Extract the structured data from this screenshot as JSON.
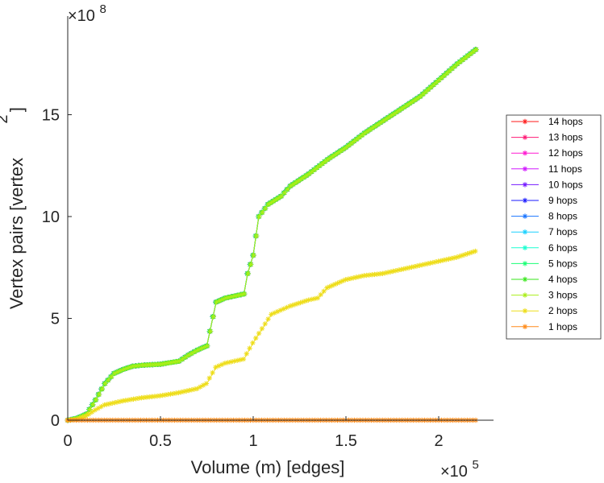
{
  "chart_data": {
    "type": "line",
    "xlabel": "Volume (m) [edges]",
    "ylabel_main": "Vertex pairs [vertex",
    "ylabel_sup": "2",
    "ylabel_close": "]",
    "x_multiplier": {
      "base": "×10",
      "exp": "5"
    },
    "y_multiplier": {
      "base": "×10",
      "exp": "8"
    },
    "xlim": [
      0,
      230000
    ],
    "ylim": [
      0,
      1950000000
    ],
    "xticks": [
      {
        "value": 0,
        "label": "0"
      },
      {
        "value": 50000,
        "label": "0.5"
      },
      {
        "value": 100000,
        "label": "1"
      },
      {
        "value": 150000,
        "label": "1.5"
      },
      {
        "value": 200000,
        "label": "2"
      }
    ],
    "yticks": [
      {
        "value": 0,
        "label": "0"
      },
      {
        "value": 500000000,
        "label": "5"
      },
      {
        "value": 1000000000,
        "label": "10"
      },
      {
        "value": 1500000000,
        "label": "15"
      }
    ],
    "legend_position": "right",
    "series": [
      {
        "name": "14 hops",
        "color": "#ff1a1a",
        "profile": "full"
      },
      {
        "name": "13 hops",
        "color": "#ff1a75",
        "profile": "full"
      },
      {
        "name": "12 hops",
        "color": "#ff1ad1",
        "profile": "full"
      },
      {
        "name": "11 hops",
        "color": "#d11aff",
        "profile": "full"
      },
      {
        "name": "10 hops",
        "color": "#751aff",
        "profile": "full"
      },
      {
        "name": "9 hops",
        "color": "#1a1aff",
        "profile": "full"
      },
      {
        "name": "8 hops",
        "color": "#1a75ff",
        "profile": "full"
      },
      {
        "name": "7 hops",
        "color": "#1ad1ff",
        "profile": "full"
      },
      {
        "name": "6 hops",
        "color": "#1affd1",
        "profile": "full"
      },
      {
        "name": "5 hops",
        "color": "#1aff75",
        "profile": "full"
      },
      {
        "name": "4 hops",
        "color": "#36e61a",
        "profile": "full"
      },
      {
        "name": "3 hops",
        "color": "#aaee1a",
        "profile": "full"
      },
      {
        "name": "2 hops",
        "color": "#eedd1a",
        "profile": "two"
      },
      {
        "name": "1 hops",
        "color": "#ff8c1a",
        "profile": "one"
      }
    ],
    "profiles": {
      "full": {
        "x": [
          0,
          5000,
          10000,
          15000,
          20000,
          25000,
          30000,
          35000,
          40000,
          50000,
          60000,
          65000,
          70000,
          75000,
          80000,
          85000,
          90000,
          95000,
          97000,
          100000,
          103000,
          108000,
          115000,
          120000,
          130000,
          140000,
          150000,
          160000,
          170000,
          180000,
          190000,
          200000,
          210000,
          220000
        ],
        "y": [
          0,
          10000000,
          30000000,
          100000000,
          180000000,
          230000000,
          250000000,
          265000000,
          270000000,
          275000000,
          290000000,
          320000000,
          345000000,
          365000000,
          580000000,
          600000000,
          610000000,
          620000000,
          720000000,
          810000000,
          1000000000,
          1060000000,
          1100000000,
          1150000000,
          1210000000,
          1280000000,
          1340000000,
          1410000000,
          1470000000,
          1530000000,
          1590000000,
          1670000000,
          1750000000,
          1820000000
        ]
      },
      "two": {
        "x": [
          0,
          5000,
          10000,
          15000,
          20000,
          30000,
          40000,
          50000,
          60000,
          70000,
          75000,
          80000,
          85000,
          90000,
          95000,
          100000,
          105000,
          110000,
          115000,
          120000,
          130000,
          135000,
          140000,
          150000,
          160000,
          170000,
          180000,
          190000,
          200000,
          210000,
          220000
        ],
        "y": [
          0,
          5000000,
          20000000,
          50000000,
          75000000,
          95000000,
          110000000,
          120000000,
          135000000,
          155000000,
          180000000,
          260000000,
          280000000,
          290000000,
          300000000,
          380000000,
          450000000,
          520000000,
          540000000,
          560000000,
          590000000,
          600000000,
          650000000,
          690000000,
          710000000,
          720000000,
          740000000,
          760000000,
          780000000,
          800000000,
          830000000
        ]
      },
      "one": {
        "x": [
          0,
          50000,
          100000,
          150000,
          200000,
          220000
        ],
        "y": [
          0,
          0,
          0,
          0,
          0,
          0
        ]
      }
    }
  }
}
